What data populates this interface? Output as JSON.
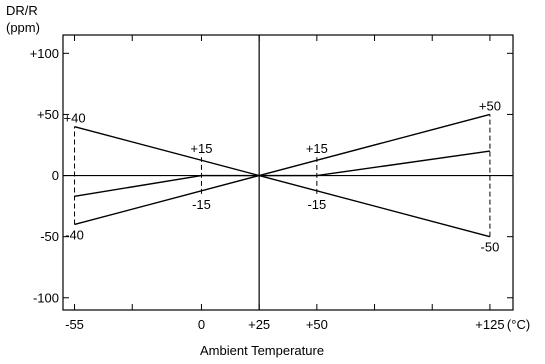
{
  "chart_data": {
    "type": "line",
    "ylabel": "DR/R",
    "yunit": "(ppm)",
    "xlabel": "Ambient Temperature",
    "xunit": "(°C)",
    "xlim": [
      -60,
      135
    ],
    "ylim": [
      -110,
      115
    ],
    "x_ticks": [
      {
        "value": -55,
        "label": "-55"
      },
      {
        "value": 0,
        "label": "0"
      },
      {
        "value": 25,
        "label": "+25"
      },
      {
        "value": 50,
        "label": "+50"
      },
      {
        "value": 125,
        "label": "+125"
      }
    ],
    "x_minor_ticks": [
      -30,
      75,
      100
    ],
    "y_ticks": [
      {
        "value": 100,
        "label": "+100"
      },
      {
        "value": 50,
        "label": "+50"
      },
      {
        "value": 0,
        "label": "0"
      },
      {
        "value": -50,
        "label": "-50"
      },
      {
        "value": -100,
        "label": "-100"
      }
    ],
    "series": [
      {
        "x": [
          -55,
          25,
          125
        ],
        "y": [
          40,
          0,
          -50
        ]
      },
      {
        "x": [
          -55,
          25,
          125
        ],
        "y": [
          -40,
          0,
          50
        ]
      },
      {
        "x": [
          -55,
          0,
          25,
          50,
          125
        ],
        "y": [
          -17,
          0,
          0,
          0,
          20
        ]
      }
    ],
    "vlines": [
      {
        "x": -55,
        "y": [
          -40,
          40
        ]
      },
      {
        "x": 0,
        "y": [
          -15,
          15
        ]
      },
      {
        "x": 50,
        "y": [
          -15,
          15
        ]
      },
      {
        "x": 125,
        "y": [
          -50,
          50
        ]
      }
    ],
    "annotations": [
      {
        "text": "+40",
        "x": -55,
        "y": 40,
        "pos": "above"
      },
      {
        "text": "-40",
        "x": -55,
        "y": -40,
        "pos": "below"
      },
      {
        "text": "+15",
        "x": 0,
        "y": 15,
        "pos": "above"
      },
      {
        "text": "-15",
        "x": 0,
        "y": -15,
        "pos": "below"
      },
      {
        "text": "+15",
        "x": 50,
        "y": 15,
        "pos": "above"
      },
      {
        "text": "-15",
        "x": 50,
        "y": -15,
        "pos": "below"
      },
      {
        "text": "+50",
        "x": 125,
        "y": 50,
        "pos": "above"
      },
      {
        "text": "-50",
        "x": 125,
        "y": -50,
        "pos": "below"
      }
    ]
  }
}
